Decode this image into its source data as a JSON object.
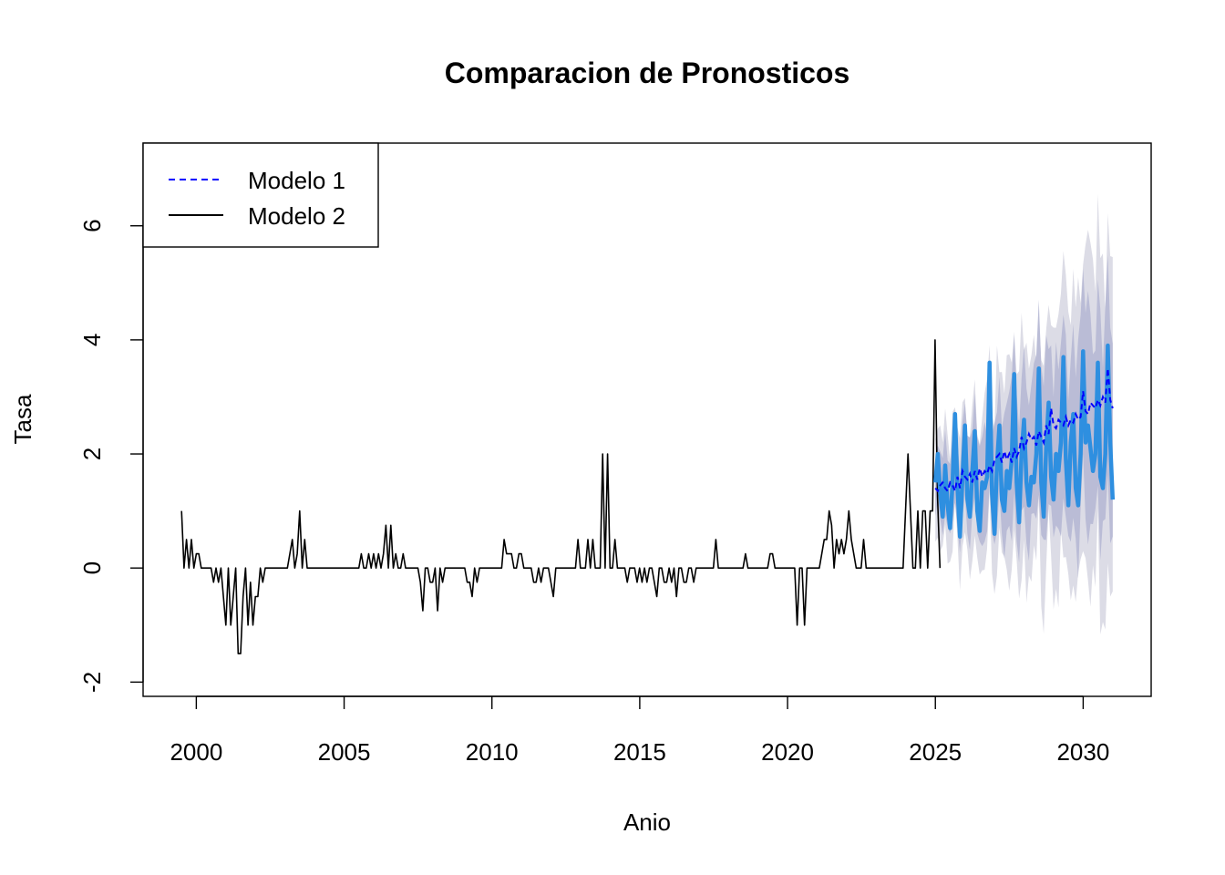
{
  "chart_data": {
    "type": "line",
    "title": "Comparacion de Pronosticos",
    "xlabel": "Anio",
    "ylabel": "Tasa",
    "xlim": [
      1998.2,
      2032.3
    ],
    "ylim": [
      -2.25,
      7.45
    ],
    "x_ticks": [
      2000,
      2005,
      2010,
      2015,
      2020,
      2025,
      2030
    ],
    "x_tick_labels": [
      "2000",
      "2005",
      "2010",
      "2015",
      "2020",
      "2025",
      "2030"
    ],
    "y_ticks": [
      -2,
      0,
      2,
      4,
      6
    ],
    "y_tick_labels": [
      "-2",
      "0",
      "2",
      "4",
      "6"
    ],
    "legend": {
      "position": "top-left",
      "entries": [
        {
          "label": "Modelo 1",
          "style": "dashed",
          "color": "#0000ff"
        },
        {
          "label": "Modelo 2",
          "style": "solid",
          "color": "#000000"
        }
      ]
    },
    "colors": {
      "history": "#000000",
      "modelo1_mean": "#0000ff",
      "modelo2_mean": "#2e8fe0",
      "band80": "#b6b8d4",
      "band95": "#dcdce6"
    },
    "history": {
      "start": 1999.5,
      "step": 0.0833,
      "values": [
        1,
        0,
        0.5,
        0,
        0.5,
        0,
        0.25,
        0.25,
        0,
        0,
        0,
        0,
        0,
        -0.25,
        0,
        -0.25,
        0,
        -0.5,
        -1,
        0,
        -1,
        -0.5,
        0,
        -1.5,
        -1.5,
        -0.5,
        0,
        -1,
        -0.25,
        -1,
        -0.5,
        -0.5,
        0,
        -0.25,
        0,
        0,
        0,
        0,
        0,
        0,
        0,
        0,
        0,
        0,
        0.25,
        0.5,
        0,
        0.25,
        1,
        0,
        0.5,
        0,
        0,
        0,
        0,
        0,
        0,
        0,
        0,
        0,
        0,
        0,
        0,
        0,
        0,
        0,
        0,
        0,
        0,
        0,
        0,
        0,
        0,
        0.25,
        0,
        0,
        0.25,
        0,
        0.25,
        0,
        0.25,
        0,
        0.25,
        0.75,
        0,
        0.75,
        0,
        0.25,
        0,
        0,
        0.25,
        0,
        0,
        0,
        0,
        0,
        0,
        -0.25,
        -0.75,
        0,
        0,
        -0.25,
        -0.25,
        0,
        -0.75,
        0,
        -0.25,
        0,
        0,
        0,
        0,
        0,
        0,
        0,
        0,
        0,
        -0.25,
        -0.25,
        -0.5,
        0,
        -0.25,
        0,
        0,
        0,
        0,
        0,
        0,
        0,
        0,
        0,
        0,
        0.5,
        0.25,
        0.25,
        0.25,
        0,
        0,
        0.25,
        0.25,
        0,
        0,
        0,
        0,
        -0.25,
        -0.25,
        0,
        -0.25,
        0,
        0,
        0,
        -0.25,
        -0.5,
        0,
        0,
        0,
        0,
        0,
        0,
        0,
        0,
        0,
        0.5,
        0,
        0,
        0,
        0.5,
        0,
        0.5,
        0,
        0,
        0,
        2,
        0,
        2,
        0,
        0,
        0.5,
        0,
        0,
        0,
        0,
        -0.25,
        0,
        0,
        0,
        -0.25,
        0,
        -0.25,
        0,
        -0.25,
        0,
        0,
        -0.25,
        -0.5,
        0,
        0,
        -0.25,
        -0.25,
        0,
        -0.25,
        0,
        -0.5,
        0,
        0,
        -0.25,
        -0.25,
        0,
        0,
        -0.25,
        0,
        0,
        0,
        0,
        0,
        0,
        0,
        0,
        0.5,
        0,
        0,
        0,
        0,
        0,
        0,
        0,
        0,
        0,
        0,
        0,
        0.25,
        0,
        0,
        0,
        0,
        0,
        0,
        0,
        0,
        0,
        0.25,
        0.25,
        0,
        0,
        0,
        0,
        0,
        0,
        0,
        0,
        0,
        -1,
        0,
        0,
        -1,
        0,
        0,
        0,
        0,
        0,
        0,
        0.25,
        0.5,
        0.5,
        1,
        0.75,
        0,
        0.5,
        0.25,
        0.5,
        0.25,
        0.5,
        1,
        0.5,
        0.25,
        0,
        0,
        0,
        0.5,
        0,
        0,
        0,
        0,
        0,
        0,
        0,
        0,
        0,
        0,
        0,
        0,
        0,
        0,
        0,
        0,
        1,
        2,
        1,
        0,
        0,
        1,
        0,
        1,
        1,
        0,
        1,
        1,
        4,
        1.25,
        0
      ]
    },
    "forecast": {
      "start": 2025.0,
      "step": 0.0833,
      "modelo1": [
        1.4,
        1.35,
        1.45,
        1.5,
        1.4,
        1.35,
        1.5,
        1.45,
        1.35,
        1.6,
        1.4,
        1.7,
        1.6,
        1.55,
        1.65,
        1.5,
        1.7,
        1.55,
        1.75,
        1.6,
        1.7,
        1.65,
        1.8,
        1.7,
        1.9,
        1.95,
        2.0,
        1.85,
        2.05,
        1.9,
        2.0,
        1.85,
        2.1,
        1.95,
        2.05,
        2.3,
        2.1,
        2.2,
        2.35,
        2.25,
        2.3,
        2.15,
        2.4,
        2.3,
        2.2,
        2.5,
        2.35,
        2.8,
        2.5,
        2.45,
        2.6,
        2.55,
        2.5,
        2.65,
        2.5,
        2.6,
        2.55,
        2.7,
        2.6,
        2.65,
        3.1,
        2.75,
        2.7,
        2.9,
        2.85,
        2.8,
        2.95,
        2.85,
        3.0,
        2.9,
        3.5,
        2.95,
        2.8
      ],
      "modelo2": [
        1.5,
        2.0,
        1.3,
        0.9,
        1.8,
        1.1,
        0.7,
        1.5,
        2.7,
        1.4,
        0.55,
        1.6,
        2.5,
        1.2,
        0.9,
        1.7,
        2.4,
        1.0,
        0.65,
        1.5,
        1.4,
        1.6,
        3.6,
        1.3,
        0.6,
        1.8,
        2.5,
        1.2,
        1.0,
        1.7,
        1.4,
        1.9,
        3.4,
        1.5,
        0.8,
        2.0,
        2.6,
        1.5,
        1.1,
        1.6,
        1.5,
        2.0,
        3.5,
        1.5,
        0.9,
        2.1,
        2.9,
        1.6,
        1.2,
        2.0,
        1.7,
        2.2,
        3.7,
        1.9,
        1.1,
        2.2,
        2.7,
        1.4,
        1.1,
        2.0,
        3.8,
        2.2,
        2.5,
        2.1,
        1.7,
        2.0,
        3.6,
        1.6,
        1.4,
        2.0,
        3.9,
        2.2,
        1.2
      ],
      "band80_halfwidth": [
        0.55,
        1.95
      ],
      "band95_halfwidth": [
        0.85,
        2.9
      ]
    }
  }
}
